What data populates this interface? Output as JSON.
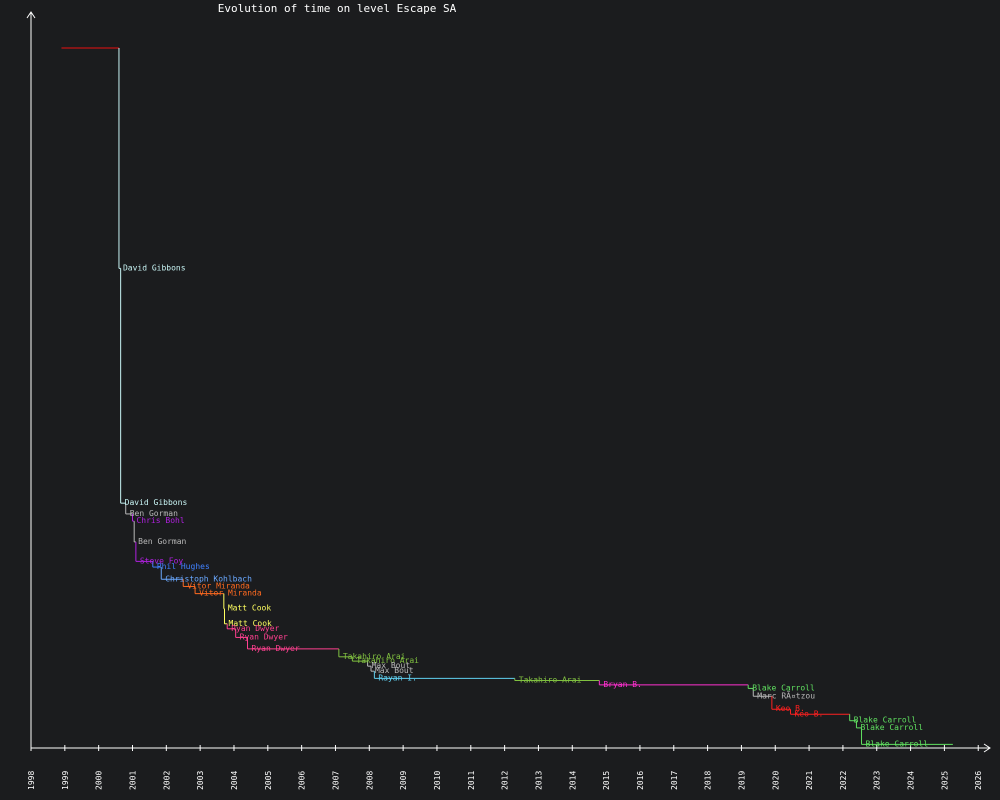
{
  "chart_data": {
    "type": "line",
    "title": "Evolution of time on level Escape SA",
    "xlabel": "",
    "ylabel": "",
    "x_tick_labels": [
      "1998",
      "1999",
      "2000",
      "2001",
      "2002",
      "2003",
      "2004",
      "2005",
      "2006",
      "2007",
      "2008",
      "2009",
      "2010",
      "2011",
      "2012",
      "2013",
      "2014",
      "2015",
      "2016",
      "2017",
      "2018",
      "2019",
      "2020",
      "2021",
      "2022",
      "2023",
      "2024",
      "2025",
      "2026"
    ],
    "xlim": [
      1998.0,
      2026.2
    ],
    "y_axis_tick_labels": "none",
    "ylim": [
      0,
      100
    ],
    "steps": [
      {
        "name": "",
        "color": "#e81010",
        "x_start": 1998.9,
        "x_end": 2000.6,
        "y": 97.5
      },
      {
        "name": "David Gibbons",
        "color": "#c8f4f4",
        "x_start": 2000.6,
        "x_end": 2000.65,
        "y": 66.8
      },
      {
        "name": "David Gibbons",
        "color": "#c8f4f4",
        "x_start": 2000.65,
        "x_end": 2000.8,
        "y": 34.1
      },
      {
        "name": "Ben Gorman",
        "color": "#b8b8b8",
        "x_start": 2000.8,
        "x_end": 2001.0,
        "y": 32.6
      },
      {
        "name": "Chris Bohl",
        "color": "#b020e0",
        "x_start": 2001.0,
        "x_end": 2001.05,
        "y": 31.6
      },
      {
        "name": "Ben Gorman",
        "color": "#b8b8b8",
        "x_start": 2001.05,
        "x_end": 2001.1,
        "y": 28.7
      },
      {
        "name": "Steve Foy",
        "color": "#b020e0",
        "x_start": 2001.1,
        "x_end": 2001.6,
        "y": 26.0
      },
      {
        "name": "Phil Hughes",
        "color": "#4080ff",
        "x_start": 2001.6,
        "x_end": 2001.85,
        "y": 25.2
      },
      {
        "name": "Christoph Kohlbach",
        "color": "#6aa8ff",
        "x_start": 2001.85,
        "x_end": 2002.5,
        "y": 23.5
      },
      {
        "name": "Vitor Miranda",
        "color": "#ff6a20",
        "x_start": 2002.5,
        "x_end": 2002.85,
        "y": 22.5
      },
      {
        "name": "Vitor Miranda",
        "color": "#ff6a20",
        "x_start": 2002.85,
        "x_end": 2003.7,
        "y": 21.5
      },
      {
        "name": "Matt Cook",
        "color": "#ffff60",
        "x_start": 2003.7,
        "x_end": 2003.72,
        "y": 19.4
      },
      {
        "name": "Matt Cook",
        "color": "#ffff60",
        "x_start": 2003.72,
        "x_end": 2003.8,
        "y": 17.3
      },
      {
        "name": "Ryan Dwyer",
        "color": "#ff4090",
        "x_start": 2003.8,
        "x_end": 2004.05,
        "y": 16.6
      },
      {
        "name": "Ryan Dwyer",
        "color": "#ff4090",
        "x_start": 2004.05,
        "x_end": 2004.4,
        "y": 15.4
      },
      {
        "name": "Ryan Dwyer",
        "color": "#ff4090",
        "x_start": 2004.4,
        "x_end": 2007.1,
        "y": 13.8
      },
      {
        "name": "Takahiro Arai",
        "color": "#80c040",
        "x_start": 2007.1,
        "x_end": 2007.5,
        "y": 12.7
      },
      {
        "name": "Takahiro Arai",
        "color": "#80c040",
        "x_start": 2007.5,
        "x_end": 2007.95,
        "y": 12.1
      },
      {
        "name": "Max Bout",
        "color": "#b8b8b8",
        "x_start": 2007.95,
        "x_end": 2008.05,
        "y": 11.4
      },
      {
        "name": "Max Bout",
        "color": "#b8b8b8",
        "x_start": 2008.05,
        "x_end": 2008.15,
        "y": 10.7
      },
      {
        "name": "Rayan I.",
        "color": "#60d0f0",
        "x_start": 2008.15,
        "x_end": 2012.3,
        "y": 9.7
      },
      {
        "name": "Takahiro Arai",
        "color": "#80c040",
        "x_start": 2012.3,
        "x_end": 2014.8,
        "y": 9.4
      },
      {
        "name": "Bryan B.",
        "color": "#ff30d0",
        "x_start": 2014.8,
        "x_end": 2019.2,
        "y": 8.8
      },
      {
        "name": "Blake Carroll",
        "color": "#60e060",
        "x_start": 2019.2,
        "x_end": 2019.35,
        "y": 8.3
      },
      {
        "name": "Marc RÃ¤tzou",
        "color": "#b8b8b8",
        "x_start": 2019.35,
        "x_end": 2019.9,
        "y": 7.2
      },
      {
        "name": "Keo B.",
        "color": "#ff2020",
        "x_start": 2019.9,
        "x_end": 2020.45,
        "y": 5.4
      },
      {
        "name": "Keo B.",
        "color": "#ff2020",
        "x_start": 2020.45,
        "x_end": 2022.2,
        "y": 4.7
      },
      {
        "name": "Blake Carroll",
        "color": "#60e060",
        "x_start": 2022.2,
        "x_end": 2022.4,
        "y": 3.8
      },
      {
        "name": "Blake Carroll",
        "color": "#60e060",
        "x_start": 2022.4,
        "x_end": 2022.55,
        "y": 2.8
      },
      {
        "name": "Blake Carroll",
        "color": "#60e060",
        "x_start": 2022.55,
        "x_end": 2025.25,
        "y": 0.5
      }
    ],
    "grid": false,
    "legend": "none"
  },
  "colors": {
    "background": "#1b1c1e",
    "axis": "#ffffff",
    "text": "#ffffff"
  }
}
